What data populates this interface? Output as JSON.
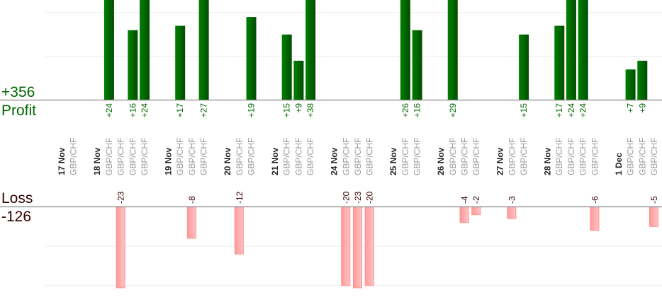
{
  "chart_data": {
    "type": "bar",
    "profit": {
      "label": "Profit",
      "total": "+356",
      "color": "#006600",
      "ylim": [
        0,
        22.9
      ],
      "grid_step": 10
    },
    "loss": {
      "label": "Loss",
      "total": "-126",
      "color": "#ffaaaa",
      "text_color": "#330000",
      "ylim": [
        0,
        20.6
      ],
      "grid_step": 10
    },
    "grid": true,
    "groups": [
      {
        "date": "17 Nov",
        "trades": [
          {
            "pair": "GBP/CHF",
            "value": 0
          }
        ]
      },
      {
        "date": "18 Nov",
        "trades": [
          {
            "pair": "GBP/CHF",
            "value": 24
          },
          {
            "pair": "GBP/CHF",
            "value": -23
          },
          {
            "pair": "GBP/CHF",
            "value": 16
          },
          {
            "pair": "GBP/CHF",
            "value": 24
          }
        ]
      },
      {
        "date": "19 Nov",
        "trades": [
          {
            "pair": "GBP/CHF",
            "value": 17
          },
          {
            "pair": "GBP/CHF",
            "value": -8
          },
          {
            "pair": "GBP/CHF",
            "value": 27
          }
        ]
      },
      {
        "date": "20 Nov",
        "trades": [
          {
            "pair": "GBP/CHF",
            "value": -12
          },
          {
            "pair": "GBP/CHF",
            "value": 19
          }
        ]
      },
      {
        "date": "21 Nov",
        "trades": [
          {
            "pair": "GBP/CHF",
            "value": 15
          },
          {
            "pair": "GBP/CHF",
            "value": 9
          },
          {
            "pair": "GBP/CHF",
            "value": 38
          }
        ]
      },
      {
        "date": "24 Nov",
        "trades": [
          {
            "pair": "GBP/CHF",
            "value": -20
          },
          {
            "pair": "GBP/CHF",
            "value": -23
          },
          {
            "pair": "GBP/CHF",
            "value": -20
          }
        ]
      },
      {
        "date": "25 Nov",
        "trades": [
          {
            "pair": "GBP/CHF",
            "value": 26
          },
          {
            "pair": "GBP/CHF",
            "value": 16
          }
        ]
      },
      {
        "date": "26 Nov",
        "trades": [
          {
            "pair": "GBP/CHF",
            "value": 29
          },
          {
            "pair": "GBP/CHF",
            "value": -4
          },
          {
            "pair": "GBP/CHF",
            "value": -2
          }
        ]
      },
      {
        "date": "27 Nov",
        "trades": [
          {
            "pair": "GBP/CHF",
            "value": -3
          },
          {
            "pair": "GBP/CHF",
            "value": 15
          }
        ]
      },
      {
        "date": "28 Nov",
        "trades": [
          {
            "pair": "GBP/CHF",
            "value": 17
          },
          {
            "pair": "GBP/CHF",
            "value": 24
          },
          {
            "pair": "GBP/CHF",
            "value": 24
          },
          {
            "pair": "GBP/CHF",
            "value": -6
          }
        ]
      },
      {
        "date": "1 Dec",
        "trades": [
          {
            "pair": "GBP/CHF",
            "value": 7
          },
          {
            "pair": "GBP/CHF",
            "value": 9
          },
          {
            "pair": "GBP/CHF",
            "value": -5
          }
        ]
      }
    ]
  }
}
